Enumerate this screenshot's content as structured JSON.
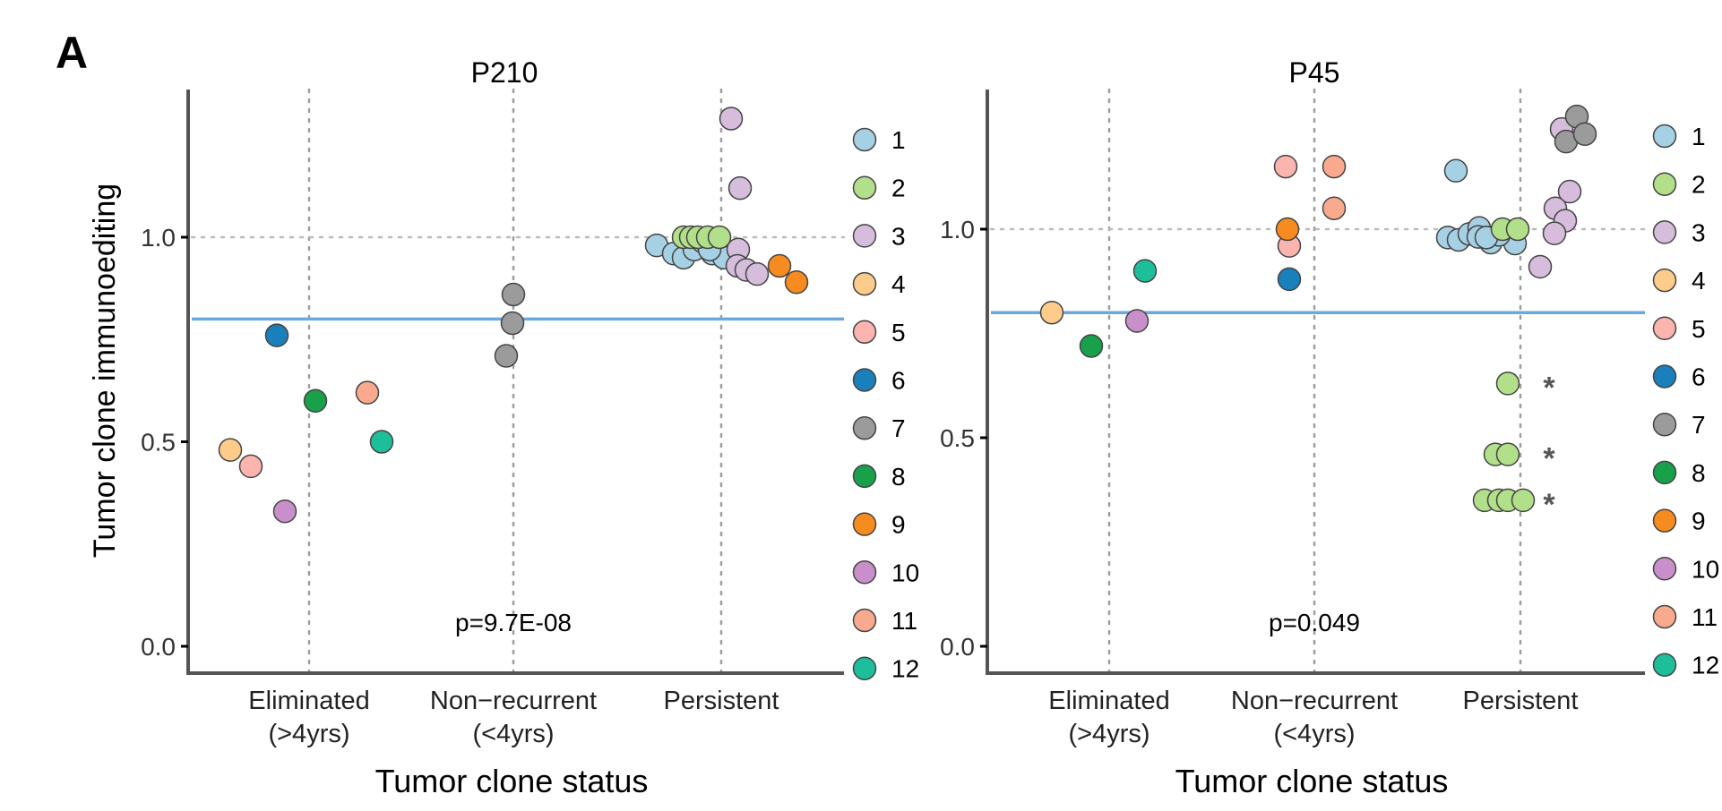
{
  "panel_label": "A",
  "colors": {
    "axis": "#555555",
    "guide": "#9e9e9e",
    "threshold": "#6aa8e0",
    "point_stroke": "#444444"
  },
  "clone_palette": {
    "1": "#a6d0e4",
    "2": "#b2df8a",
    "3": "#d5bddb",
    "4": "#fdcc8a",
    "5": "#fbb4ae",
    "6": "#1a80bb",
    "7": "#9b9b9b",
    "8": "#19a04a",
    "9": "#f68b1f",
    "10": "#c98fca",
    "11": "#f9a98e",
    "12": "#1dbf9a"
  },
  "chart_data": [
    {
      "type": "scatter",
      "title": "P210",
      "xlabel": "Tumor clone status",
      "ylabel": "Tumor clone immunoediting",
      "categories": [
        "Eliminated\n(>4yrs)",
        "Non−recurrent\n(<4yrs)",
        "Persistent"
      ],
      "ylim": [
        -0.05,
        1.35
      ],
      "yticks": [
        "0.0",
        "0.5",
        "1.0"
      ],
      "reference_line": 1.0,
      "threshold_line": 0.8,
      "grid": "vertical dotted lines at categories",
      "annotation": "p=9.7E-08",
      "legend": {
        "position": "right",
        "entries": [
          "1",
          "2",
          "3",
          "4",
          "5",
          "6",
          "7",
          "8",
          "9",
          "10",
          "11",
          "12"
        ]
      },
      "points": [
        {
          "category": "Eliminated\n(>4yrs)",
          "clone": 4,
          "y": 0.48
        },
        {
          "category": "Eliminated\n(>4yrs)",
          "clone": 5,
          "y": 0.44
        },
        {
          "category": "Eliminated\n(>4yrs)",
          "clone": 6,
          "y": 0.76
        },
        {
          "category": "Eliminated\n(>4yrs)",
          "clone": 8,
          "y": 0.6
        },
        {
          "category": "Eliminated\n(>4yrs)",
          "clone": 10,
          "y": 0.33
        },
        {
          "category": "Eliminated\n(>4yrs)",
          "clone": 11,
          "y": 0.62
        },
        {
          "category": "Eliminated\n(>4yrs)",
          "clone": 12,
          "y": 0.5
        },
        {
          "category": "Non−recurrent\n(<4yrs)",
          "clone": 7,
          "y": 0.86
        },
        {
          "category": "Non−recurrent\n(<4yrs)",
          "clone": 7,
          "y": 0.79
        },
        {
          "category": "Non−recurrent\n(<4yrs)",
          "clone": 7,
          "y": 0.71
        },
        {
          "category": "Persistent",
          "clone": 1,
          "y": 0.98
        },
        {
          "category": "Persistent",
          "clone": 1,
          "y": 0.96
        },
        {
          "category": "Persistent",
          "clone": 1,
          "y": 0.95
        },
        {
          "category": "Persistent",
          "clone": 1,
          "y": 0.97
        },
        {
          "category": "Persistent",
          "clone": 1,
          "y": 0.99
        },
        {
          "category": "Persistent",
          "clone": 1,
          "y": 0.96
        },
        {
          "category": "Persistent",
          "clone": 1,
          "y": 0.95
        },
        {
          "category": "Persistent",
          "clone": 1,
          "y": 0.97
        },
        {
          "category": "Persistent",
          "clone": 2,
          "y": 1.0
        },
        {
          "category": "Persistent",
          "clone": 2,
          "y": 1.0
        },
        {
          "category": "Persistent",
          "clone": 2,
          "y": 1.0
        },
        {
          "category": "Persistent",
          "clone": 2,
          "y": 1.0
        },
        {
          "category": "Persistent",
          "clone": 2,
          "y": 1.0
        },
        {
          "category": "Persistent",
          "clone": 3,
          "y": 1.29
        },
        {
          "category": "Persistent",
          "clone": 3,
          "y": 1.12
        },
        {
          "category": "Persistent",
          "clone": 3,
          "y": 0.97
        },
        {
          "category": "Persistent",
          "clone": 3,
          "y": 0.93
        },
        {
          "category": "Persistent",
          "clone": 3,
          "y": 0.92
        },
        {
          "category": "Persistent",
          "clone": 3,
          "y": 0.91
        },
        {
          "category": "Persistent",
          "clone": 9,
          "y": 0.93
        },
        {
          "category": "Persistent",
          "clone": 9,
          "y": 0.89
        }
      ]
    },
    {
      "type": "scatter",
      "title": "P45",
      "xlabel": "Tumor clone status",
      "ylabel": "",
      "categories": [
        "Eliminated\n(>4yrs)",
        "Non−recurrent\n(<4yrs)",
        "Persistent"
      ],
      "ylim": [
        -0.05,
        1.33
      ],
      "yticks": [
        "0.0",
        "0.5",
        "1.0"
      ],
      "reference_line": 1.0,
      "threshold_line": 0.8,
      "grid": "vertical dotted lines at categories",
      "annotation": "p=0.049",
      "legend": {
        "position": "right",
        "entries": [
          "1",
          "2",
          "3",
          "4",
          "5",
          "6",
          "7",
          "8",
          "9",
          "10",
          "11",
          "12"
        ]
      },
      "points": [
        {
          "category": "Eliminated\n(>4yrs)",
          "clone": 4,
          "y": 0.8
        },
        {
          "category": "Eliminated\n(>4yrs)",
          "clone": 8,
          "y": 0.72
        },
        {
          "category": "Eliminated\n(>4yrs)",
          "clone": 10,
          "y": 0.78
        },
        {
          "category": "Eliminated\n(>4yrs)",
          "clone": 12,
          "y": 0.9
        },
        {
          "category": "Non−recurrent\n(<4yrs)",
          "clone": 5,
          "y": 1.15
        },
        {
          "category": "Non−recurrent\n(<4yrs)",
          "clone": 5,
          "y": 0.96
        },
        {
          "category": "Non−recurrent\n(<4yrs)",
          "clone": 9,
          "y": 1.0
        },
        {
          "category": "Non−recurrent\n(<4yrs)",
          "clone": 6,
          "y": 0.88
        },
        {
          "category": "Non−recurrent\n(<4yrs)",
          "clone": 11,
          "y": 1.15
        },
        {
          "category": "Non−recurrent\n(<4yrs)",
          "clone": 11,
          "y": 1.05
        },
        {
          "category": "Persistent",
          "clone": 1,
          "y": 1.14
        },
        {
          "category": "Persistent",
          "clone": 1,
          "y": 0.98
        },
        {
          "category": "Persistent",
          "clone": 1,
          "y": 0.97
        },
        {
          "category": "Persistent",
          "clone": 1,
          "y": 0.98
        },
        {
          "category": "Persistent",
          "clone": 1,
          "y": 0.99
        },
        {
          "category": "Persistent",
          "clone": 1,
          "y": 0.97
        },
        {
          "category": "Persistent",
          "clone": 1,
          "y": 1.0
        },
        {
          "category": "Persistent",
          "clone": 1,
          "y": 0.97
        },
        {
          "category": "Persistent",
          "clone": 1,
          "y": 0.98
        },
        {
          "category": "Persistent",
          "clone": 1,
          "y": 0.99
        },
        {
          "category": "Persistent",
          "clone": 1,
          "y": 0.98
        },
        {
          "category": "Persistent",
          "clone": 2,
          "y": 1.0
        },
        {
          "category": "Persistent",
          "clone": 2,
          "y": 1.0
        },
        {
          "category": "Persistent",
          "clone": 2,
          "y": 0.63,
          "significant": true
        },
        {
          "category": "Persistent",
          "clone": 2,
          "y": 0.46,
          "significant": true
        },
        {
          "category": "Persistent",
          "clone": 2,
          "y": 0.46
        },
        {
          "category": "Persistent",
          "clone": 2,
          "y": 0.35,
          "significant": true
        },
        {
          "category": "Persistent",
          "clone": 2,
          "y": 0.35
        },
        {
          "category": "Persistent",
          "clone": 2,
          "y": 0.35
        },
        {
          "category": "Persistent",
          "clone": 2,
          "y": 0.35
        },
        {
          "category": "Persistent",
          "clone": 3,
          "y": 1.24
        },
        {
          "category": "Persistent",
          "clone": 3,
          "y": 1.09
        },
        {
          "category": "Persistent",
          "clone": 3,
          "y": 1.05
        },
        {
          "category": "Persistent",
          "clone": 3,
          "y": 1.02
        },
        {
          "category": "Persistent",
          "clone": 3,
          "y": 0.99
        },
        {
          "category": "Persistent",
          "clone": 3,
          "y": 0.91
        },
        {
          "category": "Persistent",
          "clone": 7,
          "y": 1.27
        },
        {
          "category": "Persistent",
          "clone": 7,
          "y": 1.24
        },
        {
          "category": "Persistent",
          "clone": 7,
          "y": 1.2
        }
      ],
      "significance_marker": "*"
    }
  ]
}
